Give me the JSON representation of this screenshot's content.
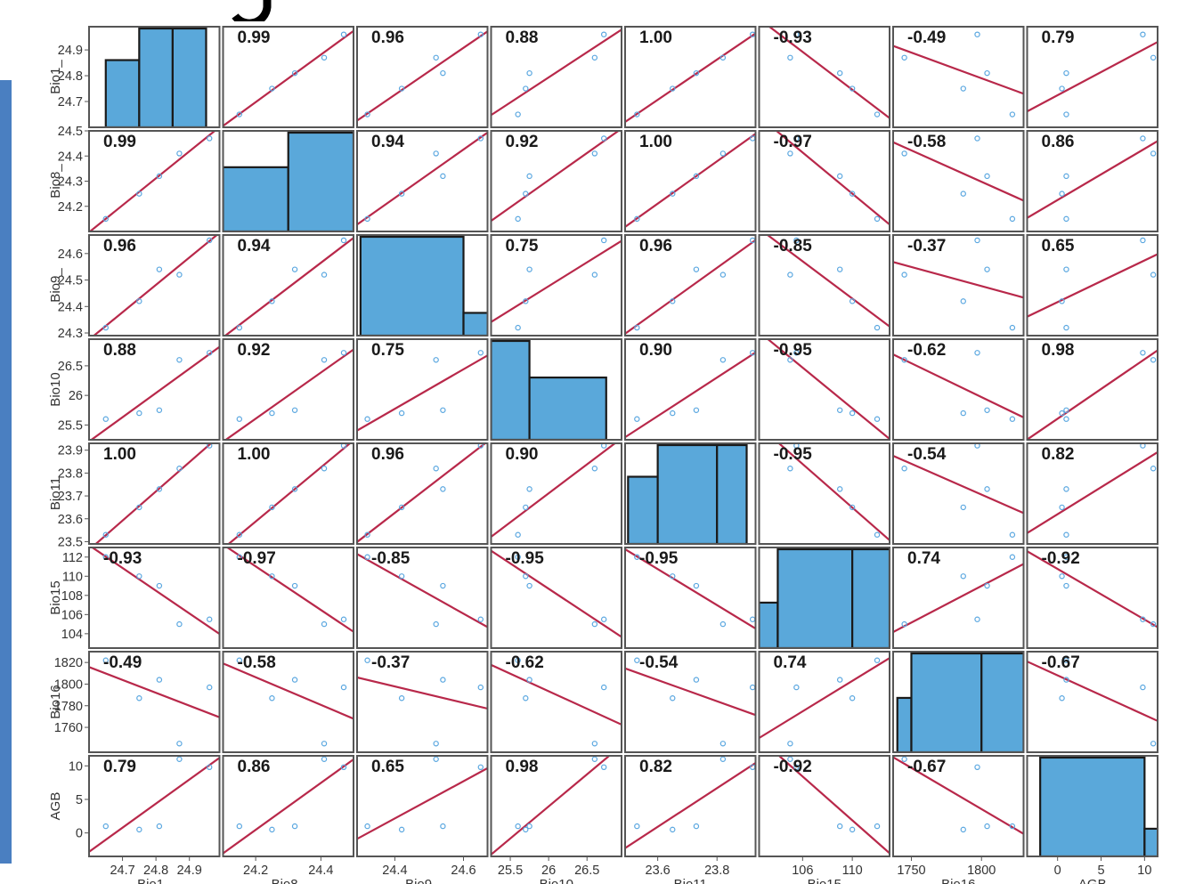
{
  "chart_data": {
    "type": "scatter",
    "subtype": "pairs-correlation-matrix",
    "variables": [
      "Bio1_",
      "Bio8_",
      "Bio9_",
      "Bio10",
      "Bio11",
      "Bio15",
      "Bio16",
      "AGB"
    ],
    "x_axis_titles": [
      "Bio1_",
      "Bio8_",
      "Bio9_",
      "Bio10",
      "Bio11",
      "Bio15",
      "Bio16",
      "AGB"
    ],
    "ranges": [
      [
        24.6,
        24.99
      ],
      [
        24.1,
        24.5
      ],
      [
        24.29,
        24.67
      ],
      [
        25.25,
        26.95
      ],
      [
        23.49,
        23.93
      ],
      [
        102.5,
        113.0
      ],
      [
        1737,
        1830
      ],
      [
        -3.5,
        11.5
      ]
    ],
    "tick_values": [
      [
        24.7,
        24.8,
        24.9
      ],
      [
        24.2,
        24.3,
        24.4,
        24.5
      ],
      [
        24.3,
        24.4,
        24.5,
        24.6
      ],
      [
        25.5,
        26,
        26.5
      ],
      [
        23.5,
        23.6,
        23.7,
        23.8,
        23.9
      ],
      [
        104,
        106,
        108,
        110,
        112
      ],
      [
        1760,
        1780,
        1800,
        1820
      ],
      [
        0,
        5,
        10
      ]
    ],
    "y_tick_labels": [
      [
        "24.7",
        "24.8",
        "24.9"
      ],
      [
        "24.2",
        "24.3",
        "24.4",
        "24.5"
      ],
      [
        "24.3",
        "24.4",
        "24.5",
        "24.6"
      ],
      [
        "25.5",
        "26",
        "26.5"
      ],
      [
        "23.5",
        "23.6",
        "23.7",
        "23.8",
        "23.9"
      ],
      [
        "104",
        "106",
        "108",
        "110",
        "112"
      ],
      [
        "1760",
        "1780",
        "1800",
        "1820"
      ],
      [
        "0",
        "5",
        "10"
      ]
    ],
    "x_tick_labels": [
      [
        "24.7",
        "24.8",
        "24.9"
      ],
      [
        "24.2",
        "24.4"
      ],
      [
        "24.4",
        "24.6"
      ],
      [
        "25.5",
        "26",
        "26.5"
      ],
      [
        "23.6",
        "23.8"
      ],
      [
        "106",
        "110"
      ],
      [
        "1750",
        "1800"
      ],
      [
        "0",
        "5",
        "10"
      ]
    ],
    "x_tick_values": [
      [
        24.7,
        24.8,
        24.9
      ],
      [
        24.2,
        24.4
      ],
      [
        24.4,
        24.6
      ],
      [
        25.5,
        26,
        26.5
      ],
      [
        23.6,
        23.8
      ],
      [
        106,
        110
      ],
      [
        1750,
        1800
      ],
      [
        0,
        5,
        10
      ]
    ],
    "observations": [
      {
        "Bio1_": 24.65,
        "Bio8_": 24.15,
        "Bio9_": 24.32,
        "Bio10": 25.6,
        "Bio11": 23.53,
        "Bio15": 112.0,
        "Bio16": 1822,
        "AGB": 1.0
      },
      {
        "Bio1_": 24.75,
        "Bio8_": 24.25,
        "Bio9_": 24.42,
        "Bio10": 25.7,
        "Bio11": 23.65,
        "Bio15": 110.0,
        "Bio16": 1787,
        "AGB": 0.5
      },
      {
        "Bio1_": 24.81,
        "Bio8_": 24.32,
        "Bio9_": 24.54,
        "Bio10": 25.75,
        "Bio11": 23.73,
        "Bio15": 109.0,
        "Bio16": 1804,
        "AGB": 1.0
      },
      {
        "Bio1_": 24.87,
        "Bio8_": 24.41,
        "Bio9_": 24.52,
        "Bio10": 26.6,
        "Bio11": 23.82,
        "Bio15": 105.0,
        "Bio16": 1745,
        "AGB": 11.0
      },
      {
        "Bio1_": 24.96,
        "Bio8_": 24.47,
        "Bio9_": 24.65,
        "Bio10": 26.72,
        "Bio11": 23.92,
        "Bio15": 105.5,
        "Bio16": 1797,
        "AGB": 9.8
      }
    ],
    "correlations": [
      [
        "",
        "0.99",
        "0.96",
        "0.88",
        "1.00",
        "-0.93",
        "-0.49",
        "0.79"
      ],
      [
        "0.99",
        "",
        "0.94",
        "0.92",
        "1.00",
        "-0.97",
        "-0.58",
        "0.86"
      ],
      [
        "0.96",
        "0.94",
        "",
        "0.75",
        "0.96",
        "-0.85",
        "-0.37",
        "0.65"
      ],
      [
        "0.88",
        "0.92",
        "0.75",
        "",
        "0.90",
        "-0.95",
        "-0.62",
        "0.98"
      ],
      [
        "1.00",
        "1.00",
        "0.96",
        "0.90",
        "",
        "-0.95",
        "-0.54",
        "0.82"
      ],
      [
        "-0.93",
        "-0.97",
        "-0.85",
        "-0.95",
        "-0.95",
        "",
        "0.74",
        "-0.92"
      ],
      [
        "-0.49",
        "-0.58",
        "-0.37",
        "-0.62",
        "-0.54",
        "0.74",
        "",
        "-0.67"
      ],
      [
        "0.79",
        "0.86",
        "0.65",
        "0.98",
        "0.82",
        "-0.92",
        "-0.67",
        ""
      ]
    ],
    "histograms": [
      {
        "bins": [
          24.65,
          24.75,
          24.85,
          24.95
        ],
        "density": [
          0.68,
          1.0,
          1.0
        ]
      },
      {
        "bins": [
          24.1,
          24.3,
          24.5
        ],
        "density": [
          0.65,
          1.0
        ]
      },
      {
        "bins": [
          24.3,
          24.6,
          24.7
        ],
        "density": [
          1.0,
          0.23
        ]
      },
      {
        "bins": [
          25.25,
          25.75,
          26.75
        ],
        "density": [
          1.0,
          0.63
        ]
      },
      {
        "bins": [
          23.5,
          23.6,
          23.8,
          23.9
        ],
        "density": [
          0.68,
          1.0,
          1.0
        ]
      },
      {
        "bins": [
          102.5,
          104.0,
          110.0,
          113.0
        ],
        "density": [
          0.46,
          1.0,
          1.0
        ]
      },
      {
        "bins": [
          1740,
          1750,
          1800,
          1830
        ],
        "density": [
          0.55,
          1.0,
          1.0
        ]
      },
      {
        "bins": [
          -2,
          10,
          12
        ],
        "density": [
          1.0,
          0.28
        ]
      }
    ],
    "colors": {
      "point": "#5aa7e0",
      "line": "#b8284a",
      "hist_fill": "#5aa8da",
      "hist_edge": "#1a1a1a",
      "panel_border": "#555555"
    },
    "grid": false,
    "legend": "none"
  }
}
